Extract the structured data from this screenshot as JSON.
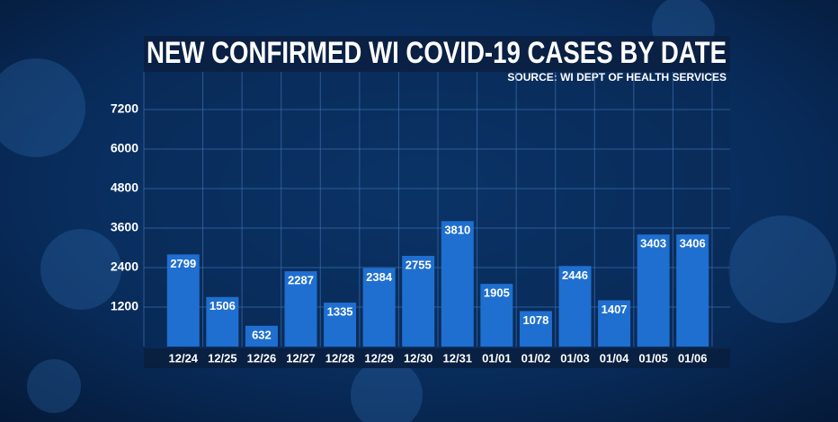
{
  "chart_data": {
    "type": "bar",
    "title": "NEW CONFIRMED WI COVID-19 CASES BY DATE",
    "subtitle": "SOURCE: WI DEPT OF HEALTH SERVICES",
    "categories": [
      "12/24",
      "12/25",
      "12/26",
      "12/27",
      "12/28",
      "12/29",
      "12/30",
      "12/31",
      "01/01",
      "01/02",
      "01/03",
      "01/04",
      "01/05",
      "01/06"
    ],
    "values": [
      2799,
      1506,
      632,
      2287,
      1335,
      2384,
      2755,
      3810,
      1905,
      1078,
      2446,
      1407,
      3403,
      3406
    ],
    "color": "#1f6fd0",
    "ylim": [
      0,
      8400
    ],
    "yticks": [
      1200,
      2400,
      3600,
      4800,
      6000,
      7200
    ],
    "grid": true
  }
}
